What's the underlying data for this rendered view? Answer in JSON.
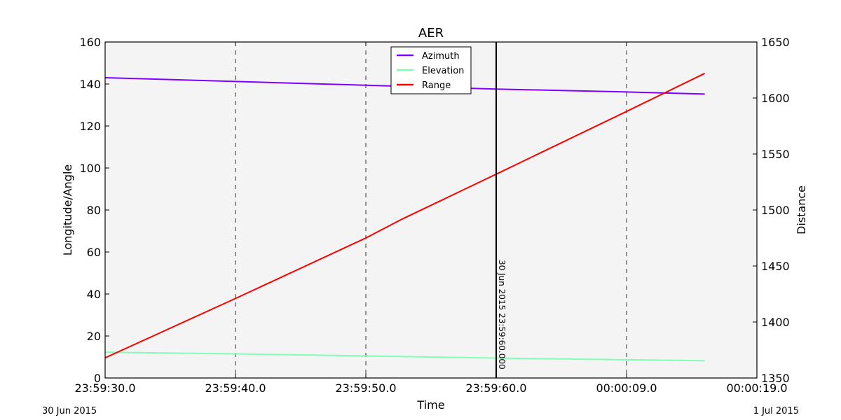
{
  "chart_data": {
    "type": "line",
    "title": "AER",
    "xlabel": "Time",
    "ylabel_left": "Longitude/Angle",
    "ylabel_right": "Distance",
    "ylim_left": [
      0,
      160
    ],
    "ylim_right": [
      1350,
      1650
    ],
    "yticks_left": [
      "0",
      "20",
      "40",
      "60",
      "80",
      "100",
      "120",
      "140",
      "160"
    ],
    "yticks_right": [
      "1350",
      "1400",
      "1450",
      "1500",
      "1550",
      "1600",
      "1650"
    ],
    "x_ticks": [
      {
        "t": 0,
        "label": "23:59:30.0"
      },
      {
        "t": 10,
        "label": "23:59:40.0"
      },
      {
        "t": 20,
        "label": "23:59:50.0"
      },
      {
        "t": 30,
        "label": "23:59:60.0"
      },
      {
        "t": 40,
        "label": "00:00:09.0"
      },
      {
        "t": 50,
        "label": "00:00:19.0"
      }
    ],
    "date_start_label": "30 Jun 2015",
    "date_end_label": "1 Jul 2015",
    "grid": "vertical dashed",
    "legend_placement": "top-center",
    "background": "#f4f4f4",
    "series": [
      {
        "name": "Azimuth",
        "axis": "left",
        "color": "#8000ff",
        "x": [
          0,
          10,
          20,
          30,
          40,
          46
        ],
        "y": [
          143,
          141.2,
          139.4,
          137.6,
          136.2,
          135.2
        ]
      },
      {
        "name": "Elevation",
        "axis": "left",
        "color": "#80ffb4",
        "x": [
          0,
          10,
          20,
          30,
          40,
          46
        ],
        "y": [
          12.3,
          11.5,
          10.5,
          9.5,
          8.7,
          8.2
        ]
      },
      {
        "name": "Range",
        "axis": "right",
        "color": "#ff0000",
        "x": [
          0,
          10,
          20,
          22.8,
          30,
          40,
          46
        ],
        "y": [
          1368,
          1421,
          1475,
          1492,
          1532,
          1588,
          1622
        ]
      }
    ],
    "cursor": {
      "t": 30,
      "label": "30 Jun 2015 23:59:60.000"
    }
  }
}
